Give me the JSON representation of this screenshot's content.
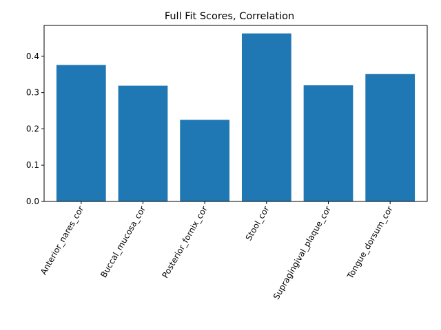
{
  "chart_data": {
    "type": "bar",
    "title": "Full Fit Scores, Correlation",
    "xlabel": "",
    "ylabel": "",
    "categories": [
      "Anterior_nares_cor",
      "Buccal_mucosa_cor",
      "Posterior_fornix_cor",
      "Stool_cor",
      "Supragingival_plaque_cor",
      "Tongue_dorsum_cor"
    ],
    "values": [
      0.376,
      0.319,
      0.225,
      0.463,
      0.32,
      0.351
    ],
    "ylim": [
      0,
      0.485
    ],
    "yticks": [
      0.0,
      0.1,
      0.2,
      0.3,
      0.4
    ],
    "ytick_labels": [
      "0.0",
      "0.1",
      "0.2",
      "0.3",
      "0.4"
    ],
    "bar_color": "#1f77b4",
    "grid": false,
    "legend": "none"
  }
}
